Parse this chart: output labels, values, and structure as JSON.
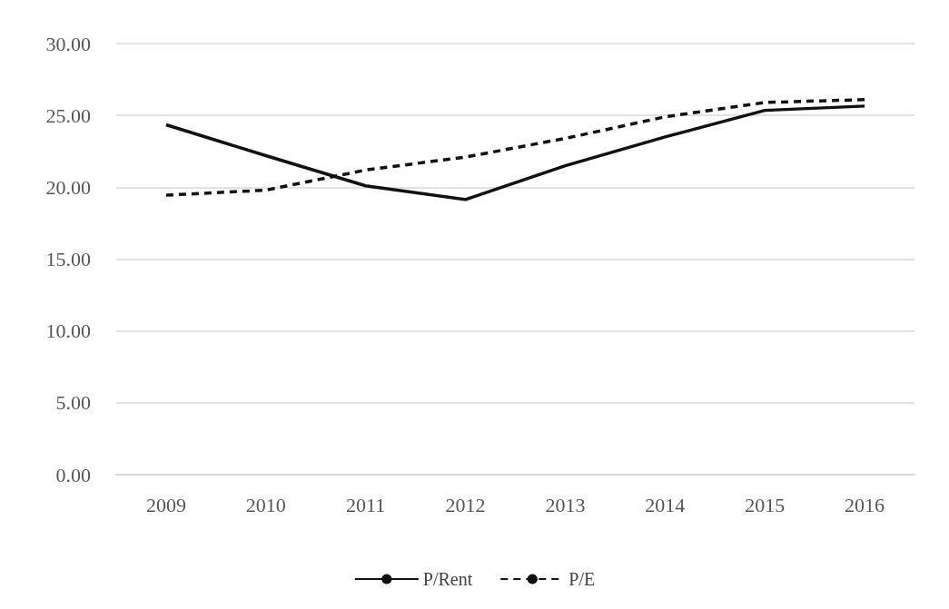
{
  "chart_data": {
    "type": "line",
    "categories": [
      "2009",
      "2010",
      "2011",
      "2012",
      "2013",
      "2014",
      "2015",
      "2016"
    ],
    "series": [
      {
        "name": "P/Rent",
        "color": "#111111",
        "line_style": "solid",
        "values": [
          24.35,
          22.2,
          20.1,
          19.15,
          21.5,
          23.5,
          25.35,
          25.65
        ]
      },
      {
        "name": "P/E",
        "color": "#111111",
        "line_style": "dashed",
        "values": [
          19.45,
          19.8,
          21.2,
          22.1,
          23.4,
          24.9,
          25.9,
          26.1
        ]
      }
    ],
    "ylim": [
      0,
      30
    ],
    "yticks": [
      {
        "value": 0,
        "label": "0.00"
      },
      {
        "value": 5,
        "label": "5.00"
      },
      {
        "value": 10,
        "label": "10.00"
      },
      {
        "value": 15,
        "label": "15.00"
      },
      {
        "value": 20,
        "label": "20.00"
      },
      {
        "value": 25,
        "label": "25.00"
      },
      {
        "value": 30,
        "label": "30.00"
      }
    ],
    "grid": "y",
    "legend": "bottom",
    "marker": "none"
  }
}
